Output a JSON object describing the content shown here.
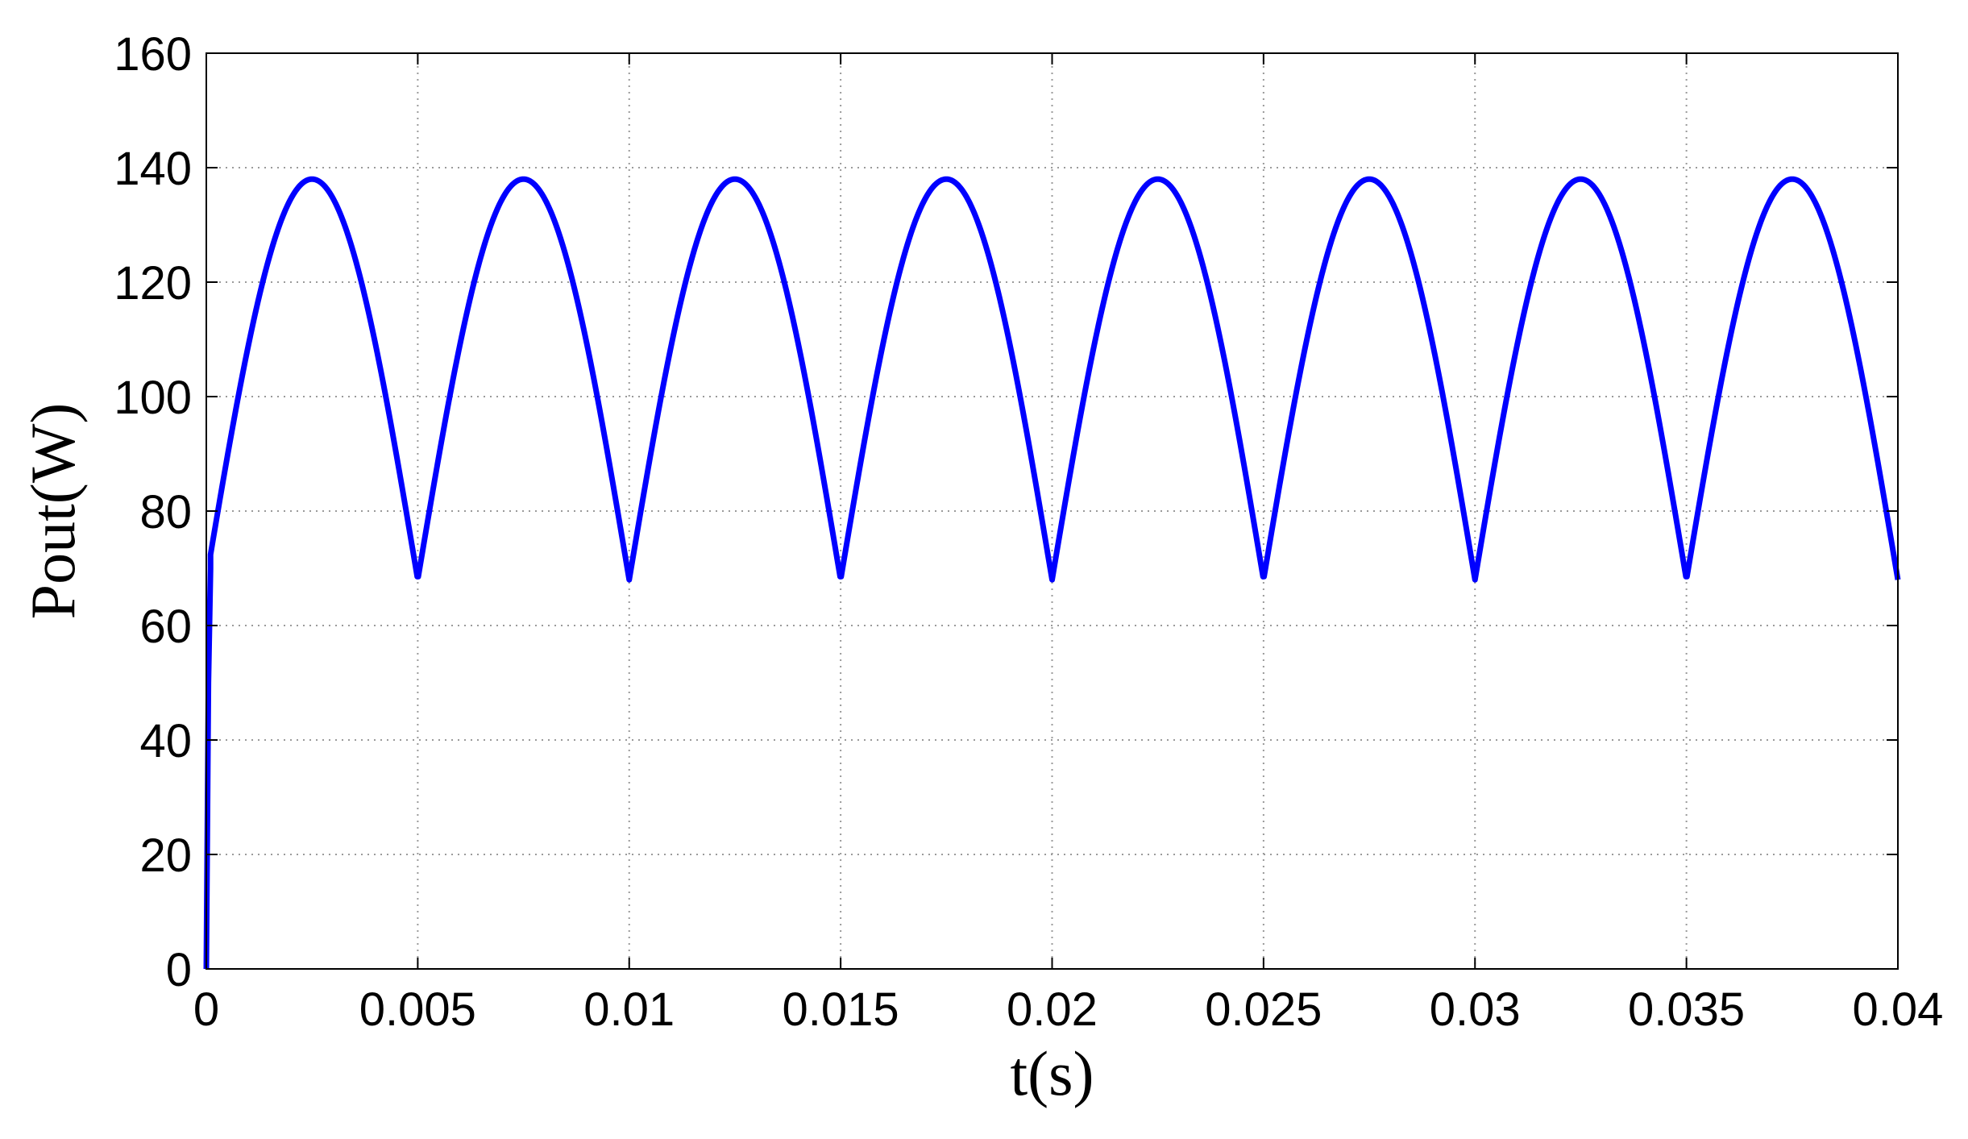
{
  "chart_data": {
    "type": "line",
    "title": "",
    "xlabel": "t(s)",
    "ylabel": "Pout(W)",
    "xlim": [
      0,
      0.04
    ],
    "ylim": [
      0,
      160
    ],
    "x_ticks": [
      0,
      0.005,
      0.01,
      0.015,
      0.02,
      0.025,
      0.03,
      0.035,
      0.04
    ],
    "x_tick_labels": [
      "0",
      "0.005",
      "0.01",
      "0.015",
      "0.02",
      "0.025",
      "0.03",
      "0.035",
      "0.04"
    ],
    "y_ticks": [
      0,
      20,
      40,
      60,
      80,
      100,
      120,
      140,
      160
    ],
    "y_tick_labels": [
      "0",
      "20",
      "40",
      "60",
      "80",
      "100",
      "120",
      "140",
      "160"
    ],
    "grid": true,
    "grid_style": "dotted",
    "legend": "none",
    "series": [
      {
        "color": "#0000ff",
        "x": [
          0,
          5e-05,
          0.0001,
          0.0005,
          0.001,
          0.0015,
          0.002,
          0.0025,
          0.003,
          0.0035,
          0.004,
          0.0045,
          0.005,
          0.0055,
          0.006,
          0.0065,
          0.007,
          0.0075,
          0.008,
          0.0085,
          0.009,
          0.0095,
          0.01,
          0.0105,
          0.011,
          0.0115,
          0.012,
          0.0125,
          0.013,
          0.0135,
          0.014,
          0.0145,
          0.015,
          0.0155,
          0.016,
          0.0165,
          0.017,
          0.0175,
          0.018,
          0.0185,
          0.019,
          0.0195,
          0.02,
          0.0205,
          0.021,
          0.0215,
          0.022,
          0.0225,
          0.023,
          0.0235,
          0.024,
          0.0245,
          0.025,
          0.0255,
          0.026,
          0.0265,
          0.027,
          0.0275,
          0.028,
          0.0285,
          0.029,
          0.0295,
          0.03,
          0.0305,
          0.031,
          0.0315,
          0.032,
          0.0325,
          0.033,
          0.0335,
          0.034,
          0.0345,
          0.035,
          0.0355,
          0.036,
          0.0365,
          0.037,
          0.0375,
          0.038,
          0.0385,
          0.039,
          0.0395,
          0.04
        ],
        "y": [
          0,
          50,
          70,
          89,
          111,
          129,
          136,
          138,
          136,
          129,
          111,
          89,
          68,
          89,
          111,
          129,
          136,
          138,
          136,
          129,
          111,
          89,
          68,
          89,
          111,
          129,
          136,
          138,
          136,
          129,
          111,
          89,
          68,
          89,
          111,
          129,
          136,
          138,
          136,
          129,
          111,
          89,
          68,
          89,
          111,
          129,
          136,
          138,
          136,
          129,
          111,
          89,
          68,
          89,
          111,
          129,
          136,
          138,
          136,
          129,
          111,
          89,
          68,
          89,
          111,
          129,
          136,
          138,
          136,
          129,
          111,
          89,
          68,
          89,
          111,
          129,
          136,
          138,
          136,
          129,
          111,
          89,
          68
        ]
      }
    ]
  }
}
